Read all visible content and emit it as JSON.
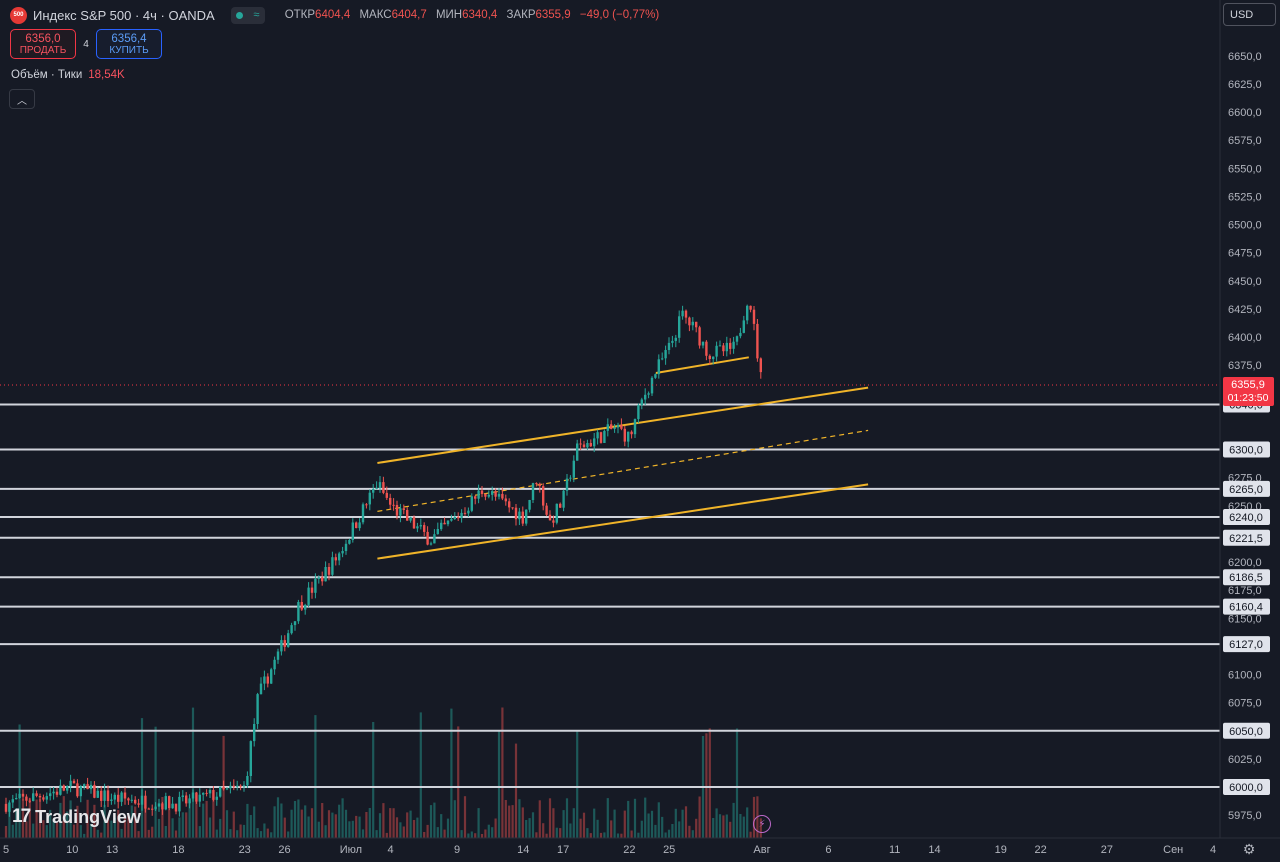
{
  "header": {
    "symbol_badge": "500",
    "title": "Индекс S&P 500 · 4ч · OANDA",
    "ohlc": [
      {
        "label": "ОТКР",
        "value": "6404,4"
      },
      {
        "label": "МАКС",
        "value": "6404,7"
      },
      {
        "label": "МИН",
        "value": "6340,4"
      },
      {
        "label": "ЗАКР",
        "value": "6355,9"
      }
    ],
    "change": "−49,0 (−0,77%)",
    "status_icon": "wave-icon"
  },
  "trade": {
    "sell_price": "6356,0",
    "sell_label": "ПРОДАТЬ",
    "spread": "4",
    "buy_price": "6356,4",
    "buy_label": "КУПИТЬ"
  },
  "volume_legend": {
    "label": "Объём · Тики",
    "value": "18,54K"
  },
  "currency": "USD",
  "brand": "TradingView",
  "colors": {
    "up": "#26a69a",
    "down": "#ef5350",
    "trend": "#f0b429",
    "level": "#d1d4dc",
    "background": "#161a25"
  },
  "chart_data": {
    "type": "candlestick",
    "ylim": [
      5960,
      6680
    ],
    "y_ticks": [
      "6650,0",
      "6625,0",
      "6600,0",
      "6575,0",
      "6550,0",
      "6525,0",
      "6500,0",
      "6475,0",
      "6450,0",
      "6425,0",
      "6400,0",
      "6375,0",
      "6275,0",
      "6250,0",
      "6225,0",
      "6200,0",
      "6175,0",
      "6150,0",
      "6125,0",
      "6100,0",
      "6075,0",
      "6025,0",
      "5975,0"
    ],
    "x_ticks": [
      "5",
      "10",
      "13",
      "18",
      "23",
      "26",
      "Июл",
      "4",
      "9",
      "14",
      "17",
      "22",
      "25",
      "Авг",
      "6",
      "11",
      "14",
      "19",
      "22",
      "27",
      "Сен",
      "4"
    ],
    "current_price": {
      "value": 6355.9,
      "label": "6355,9",
      "countdown": "01:23:50"
    },
    "horizontal_levels": [
      {
        "value": 6340.0,
        "label": "6340,0"
      },
      {
        "value": 6300.0,
        "label": "6300,0"
      },
      {
        "value": 6265.0,
        "label": "6265,0"
      },
      {
        "value": 6240.0,
        "label": "6240,0"
      },
      {
        "value": 6221.5,
        "label": "6221,5"
      },
      {
        "value": 6186.5,
        "label": "6186,5"
      },
      {
        "value": 6160.4,
        "label": "6160,4"
      },
      {
        "value": 6127.0,
        "label": "6127,0"
      },
      {
        "value": 6050.0,
        "label": "6050,0"
      },
      {
        "value": 6000.0,
        "label": "6000,0"
      }
    ],
    "trendlines": [
      {
        "from": [
          "Июл 3",
          6288
        ],
        "to": [
          "Авг 9",
          6355
        ],
        "style": "solid"
      },
      {
        "from": [
          "Июл 3",
          6245
        ],
        "to": [
          "Авг 9",
          6317
        ],
        "style": "dashed"
      },
      {
        "from": [
          "Июл 3",
          6203
        ],
        "to": [
          "Авг 9",
          6269
        ],
        "style": "solid"
      },
      {
        "from": [
          "Июл 24",
          6368
        ],
        "to": [
          "Июл 31",
          6382
        ],
        "style": "solid"
      }
    ],
    "price_path": [
      {
        "date": "Июн 5",
        "price": 5985
      },
      {
        "date": "Июн 10",
        "price": 6000
      },
      {
        "date": "Июн 13",
        "price": 5990
      },
      {
        "date": "Июн 18",
        "price": 5985
      },
      {
        "date": "Июн 23",
        "price": 6000
      },
      {
        "date": "Июн 24",
        "price": 6080
      },
      {
        "date": "Июн 26",
        "price": 6130
      },
      {
        "date": "Июн 27",
        "price": 6160
      },
      {
        "date": "Июн 30",
        "price": 6205
      },
      {
        "date": "Июл 3",
        "price": 6270
      },
      {
        "date": "Июл 4",
        "price": 6250
      },
      {
        "date": "Июл 7",
        "price": 6220
      },
      {
        "date": "Июл 9",
        "price": 6240
      },
      {
        "date": "Июл 11",
        "price": 6265
      },
      {
        "date": "Июл 14",
        "price": 6240
      },
      {
        "date": "Июл 15",
        "price": 6275
      },
      {
        "date": "Июл 16",
        "price": 6235
      },
      {
        "date": "Июл 17",
        "price": 6255
      },
      {
        "date": "Июл 18",
        "price": 6300
      },
      {
        "date": "Июл 21",
        "price": 6320
      },
      {
        "date": "Июл 22",
        "price": 6310
      },
      {
        "date": "Июл 23",
        "price": 6345
      },
      {
        "date": "Июл 24",
        "price": 6370
      },
      {
        "date": "Июл 25",
        "price": 6390
      },
      {
        "date": "Июл 26",
        "price": 6420
      },
      {
        "date": "Июл 27",
        "price": 6405
      },
      {
        "date": "Июл 28",
        "price": 6385
      },
      {
        "date": "Июл 30",
        "price": 6390
      },
      {
        "date": "Июл 31",
        "price": 6440
      },
      {
        "date": "Авг 1",
        "price": 6356
      }
    ],
    "volume_ylim": [
      0,
      220
    ]
  }
}
